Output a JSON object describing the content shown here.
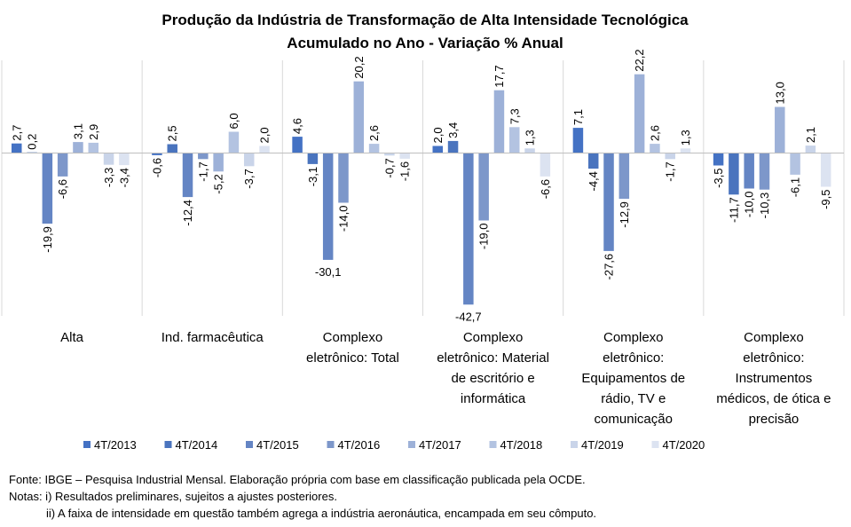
{
  "chart_data": {
    "type": "bar",
    "title": "Produção da Indústria de Transformação de Alta Intensidade Tecnológica",
    "subtitle": "Acumulado no Ano - Variação % Anual",
    "categories": [
      [
        "Alta"
      ],
      [
        "Ind. farmacêutica"
      ],
      [
        "Complexo",
        "eletrônico: Total"
      ],
      [
        "Complexo",
        "eletrônico: Material",
        "de escritório e",
        "informática"
      ],
      [
        "Complexo",
        "eletrônico:",
        "Equipamentos de",
        "rádio, TV e",
        "comunicação"
      ],
      [
        "Complexo",
        "eletrônico:",
        "Instrumentos",
        "médicos, de ótica e",
        "precisão"
      ]
    ],
    "series": [
      {
        "name": "4T/2013",
        "color": "#4472C4",
        "values": [
          2.7,
          -0.6,
          4.6,
          2.0,
          7.1,
          -3.5
        ]
      },
      {
        "name": "4T/2014",
        "color": "#4A74BE",
        "values": [
          0.2,
          2.5,
          -3.1,
          3.4,
          -4.4,
          -11.7
        ]
      },
      {
        "name": "4T/2015",
        "color": "#6485C4",
        "values": [
          -19.9,
          -12.4,
          -30.1,
          -42.7,
          -27.6,
          -10.0
        ]
      },
      {
        "name": "4T/2016",
        "color": "#7D97CA",
        "values": [
          -6.6,
          -1.7,
          -14.0,
          -19.0,
          -12.9,
          -10.3
        ]
      },
      {
        "name": "4T/2017",
        "color": "#9DB1D8",
        "values": [
          3.1,
          -5.2,
          20.2,
          17.7,
          22.2,
          13.0
        ]
      },
      {
        "name": "4T/2018",
        "color": "#B3C3E1",
        "values": [
          2.9,
          6.0,
          2.6,
          7.3,
          2.6,
          -6.1
        ]
      },
      {
        "name": "4T/2019",
        "color": "#C9D4E9",
        "values": [
          -3.3,
          -3.7,
          -0.7,
          1.3,
          -1.7,
          2.1
        ]
      },
      {
        "name": "4T/2020",
        "color": "#DCE3F1",
        "values": [
          -3.4,
          2.0,
          -1.6,
          -6.6,
          1.3,
          -9.5
        ]
      }
    ],
    "value_labels": [
      [
        "2,7",
        "-0,6",
        "4,6",
        "2,0",
        "7,1",
        "-3,5"
      ],
      [
        "0,2",
        "2,5",
        "-3,1",
        "3,4",
        "-4,4",
        "-11,7"
      ],
      [
        "-19,9",
        "-12,4",
        "-30,1",
        "-42,7",
        "-27,6",
        "-10,0"
      ],
      [
        "-6,6",
        "-1,7",
        "-14,0",
        "-19,0",
        "-12,9",
        "-10,3"
      ],
      [
        "3,1",
        "-5,2",
        "20,2",
        "17,7",
        "22,2",
        "13,0"
      ],
      [
        "2,9",
        "6,0",
        "2,6",
        "7,3",
        "2,6",
        "-6,1"
      ],
      [
        "-3,3",
        "-3,7",
        "-0,7",
        "1,3",
        "-1,7",
        "2,1"
      ],
      [
        "-3,4",
        "2,0",
        "-1,6",
        "-6,6",
        "1,3",
        "-9,5"
      ]
    ],
    "ylim": [
      -45,
      25
    ],
    "grid": false,
    "legend": "bottom"
  },
  "footer": {
    "source": "Fonte: IBGE – Pesquisa Industrial Mensal. Elaboração própria com base em classificação publicada pela OCDE.",
    "note1": "Notas: i) Resultados preliminares, sujeitos a ajustes posteriores.",
    "note2": "ii) A faixa de intensidade em questão também agrega a indústria aeronáutica, encampada em seu cômputo."
  }
}
